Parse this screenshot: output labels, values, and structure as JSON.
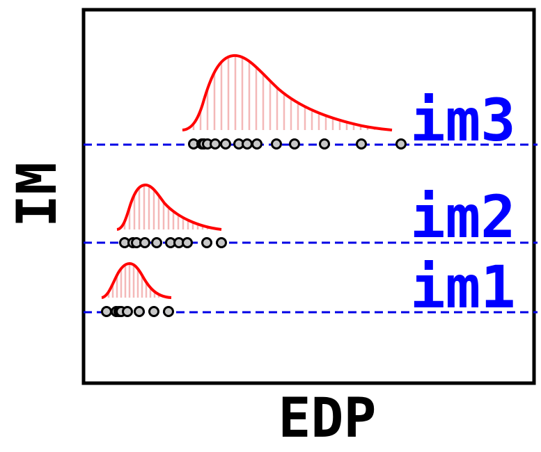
{
  "axes": {
    "x_label": "EDP",
    "y_label": "IM"
  },
  "levels": [
    {
      "label": "im1",
      "samples": 9
    },
    {
      "label": "im2",
      "samples": 10
    },
    {
      "label": "im3",
      "samples": 13
    }
  ],
  "colors": {
    "frame": "#000000",
    "level_line": "#0000e6",
    "level_label": "#0000ff",
    "pdf_curve": "#ff0000",
    "hatch": "#f4b8b8",
    "sample_fill": "#c8c8c8"
  }
}
